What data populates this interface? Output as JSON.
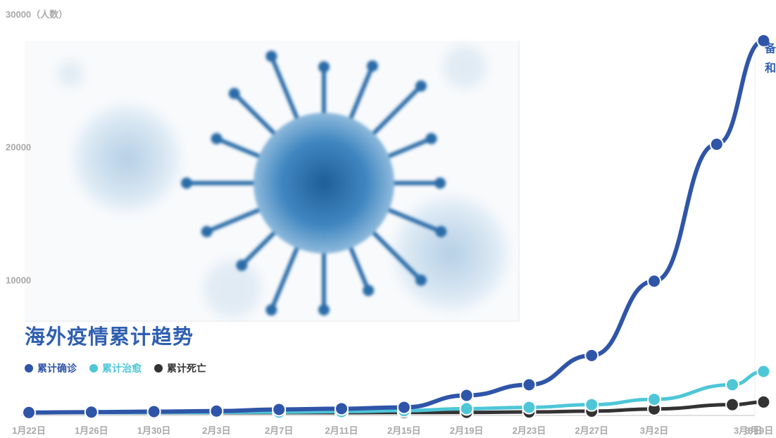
{
  "chart_data": {
    "type": "line",
    "title": "海外疫情累计趋势",
    "ylabel": "30000（人数）",
    "ylim": [
      0,
      30000
    ],
    "y_ticks": [
      {
        "value": 10000,
        "label": "10000"
      },
      {
        "value": 20000,
        "label": "20000"
      }
    ],
    "x_tick_labels": [
      "1月22日",
      "1月26日",
      "1月30日",
      "2月3日",
      "2月7日",
      "2月11日",
      "2月15日",
      "2月19日",
      "2月23日",
      "2月27日",
      "3月2日",
      "3月8日",
      "3月9日"
    ],
    "x_day_index": [
      0,
      4,
      8,
      12,
      16,
      20,
      24,
      28,
      32,
      36,
      40,
      46,
      47
    ],
    "corner_text": [
      "备",
      "和"
    ],
    "series": [
      {
        "name": "累计确诊",
        "color": "#2f55a8",
        "points": [
          [
            0,
            10
          ],
          [
            4,
            40
          ],
          [
            8,
            80
          ],
          [
            12,
            120
          ],
          [
            16,
            240
          ],
          [
            20,
            300
          ],
          [
            24,
            400
          ],
          [
            28,
            1300
          ],
          [
            32,
            2100
          ],
          [
            36,
            4300
          ],
          [
            40,
            9900
          ],
          [
            44,
            20200
          ],
          [
            47,
            28000
          ]
        ]
      },
      {
        "name": "累计治愈",
        "color": "#4ec6d8",
        "points": [
          [
            0,
            0
          ],
          [
            4,
            0
          ],
          [
            8,
            10
          ],
          [
            12,
            20
          ],
          [
            16,
            40
          ],
          [
            20,
            80
          ],
          [
            24,
            150
          ],
          [
            28,
            300
          ],
          [
            32,
            400
          ],
          [
            36,
            600
          ],
          [
            40,
            1000
          ],
          [
            45,
            2100
          ],
          [
            47,
            3100
          ]
        ]
      },
      {
        "name": "累计死亡",
        "color": "#333333",
        "points": [
          [
            0,
            0
          ],
          [
            4,
            0
          ],
          [
            8,
            0
          ],
          [
            12,
            0
          ],
          [
            16,
            0
          ],
          [
            20,
            0
          ],
          [
            24,
            10
          ],
          [
            28,
            20
          ],
          [
            32,
            50
          ],
          [
            36,
            110
          ],
          [
            40,
            280
          ],
          [
            45,
            600
          ],
          [
            47,
            800
          ]
        ]
      }
    ]
  }
}
